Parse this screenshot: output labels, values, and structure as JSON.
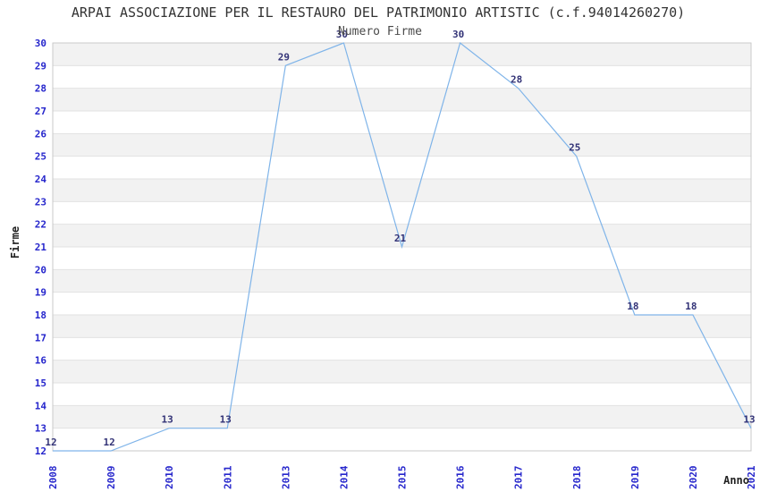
{
  "chart_data": {
    "type": "line",
    "title": "ARPAI ASSOCIAZIONE PER IL RESTAURO DEL PATRIMONIO ARTISTIC (c.f.94014260270)",
    "subtitle": "Numero Firme",
    "xlabel": "Anno",
    "ylabel": "Firme",
    "categories": [
      "2008",
      "2009",
      "2010",
      "2011",
      "2013",
      "2014",
      "2015",
      "2016",
      "2017",
      "2018",
      "2019",
      "2020",
      "2021"
    ],
    "series": [
      {
        "name": "Numero Firme",
        "values": [
          12,
          12,
          13,
          13,
          29,
          30,
          21,
          30,
          28,
          25,
          18,
          18,
          13
        ]
      }
    ],
    "ylim": [
      12,
      30
    ],
    "ytick_step": 1,
    "grid": "horizontal-bands",
    "legend": "none",
    "data_labels": true,
    "colors": {
      "line": "#7fb4e9",
      "tick_label": "#2626cc",
      "data_label": "#333377",
      "band": "#f2f2f2",
      "gridline": "#e2e2e2",
      "border": "#c9c9c9",
      "title": "#333333",
      "subtitle": "#4a4a4a",
      "axis_label": "#222222",
      "background": "#ffffff"
    }
  }
}
